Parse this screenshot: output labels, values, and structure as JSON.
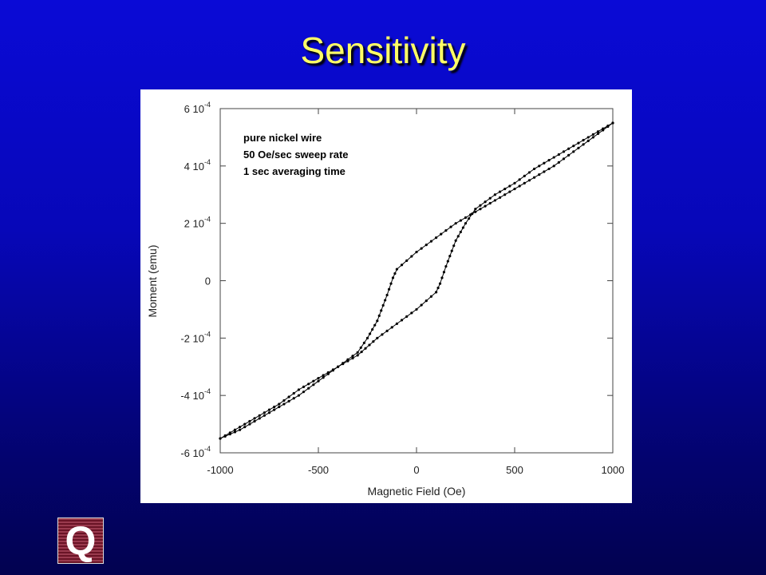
{
  "slide": {
    "title": "Sensitivity",
    "logo_letter": "Q"
  },
  "chart_data": {
    "type": "line",
    "xlabel": "Magnetic Field (Oe)",
    "ylabel": "Moment (emu)",
    "xlim": [
      -1000,
      1000
    ],
    "ylim": [
      -0.0006,
      0.0006
    ],
    "x_ticks": [
      {
        "value": -1000,
        "label": "-1000"
      },
      {
        "value": -500,
        "label": "-500"
      },
      {
        "value": 0,
        "label": "0"
      },
      {
        "value": 500,
        "label": "500"
      },
      {
        "value": 1000,
        "label": "1000"
      }
    ],
    "y_ticks": [
      {
        "value": 0.0006,
        "base": "6 10",
        "exp": "-4"
      },
      {
        "value": 0.0004,
        "base": "4 10",
        "exp": "-4"
      },
      {
        "value": 0.0002,
        "base": "2 10",
        "exp": "-4"
      },
      {
        "value": 0,
        "base": "0",
        "exp": ""
      },
      {
        "value": -0.0002,
        "base": "-2 10",
        "exp": "-4"
      },
      {
        "value": -0.0004,
        "base": "-4 10",
        "exp": "-4"
      },
      {
        "value": -0.0006,
        "base": "-6 10",
        "exp": "-4"
      }
    ],
    "annotations": [
      "pure nickel wire",
      "50 Oe/sec sweep rate",
      "1 sec averaging time"
    ],
    "grid": false,
    "colors": {
      "line": "#000000",
      "background": "#ffffff"
    },
    "series": [
      {
        "x": [
          1000,
          900,
          800,
          700,
          600,
          500,
          400,
          300,
          200,
          100,
          0,
          -50,
          -100,
          -120,
          -150,
          -200,
          -250,
          -300,
          -400,
          -500,
          -600,
          -700,
          -800,
          -900,
          -1000
        ],
        "y": [
          0.00055,
          0.0005,
          0.00045,
          0.0004,
          0.00036,
          0.00032,
          0.00028,
          0.00024,
          0.0002,
          0.00015,
          0.0001,
          7e-05,
          4e-05,
          1e-05,
          -5e-05,
          -0.00014,
          -0.0002,
          -0.00025,
          -0.0003,
          -0.00035,
          -0.0004,
          -0.00044,
          -0.00048,
          -0.00052,
          -0.00055
        ]
      },
      {
        "x": [
          -1000,
          -900,
          -800,
          -700,
          -600,
          -500,
          -400,
          -300,
          -200,
          -100,
          0,
          50,
          100,
          120,
          150,
          200,
          250,
          300,
          400,
          500,
          600,
          700,
          800,
          900,
          1000
        ],
        "y": [
          -0.00055,
          -0.00051,
          -0.00047,
          -0.00043,
          -0.00038,
          -0.00034,
          -0.0003,
          -0.00026,
          -0.0002,
          -0.00015,
          -0.0001,
          -7e-05,
          -4e-05,
          -1e-05,
          5e-05,
          0.00014,
          0.0002,
          0.00025,
          0.0003,
          0.00034,
          0.00039,
          0.00043,
          0.00047,
          0.00051,
          0.00055
        ]
      }
    ]
  }
}
